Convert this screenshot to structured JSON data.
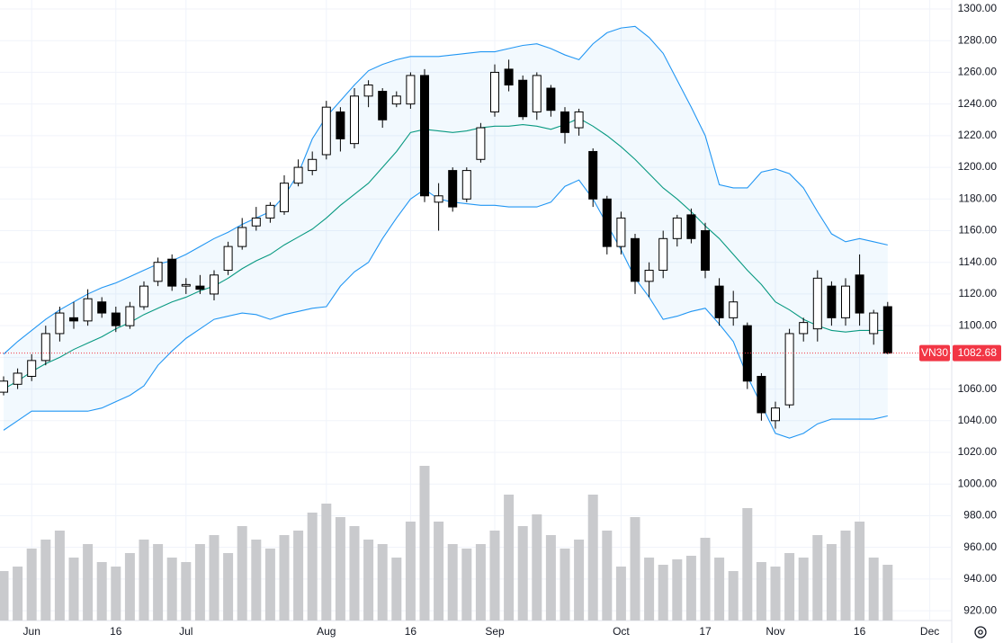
{
  "chart_data": {
    "type": "candlestick",
    "symbol": "VN30",
    "categories": [
      null,
      null,
      "Jun",
      null,
      null,
      null,
      null,
      null,
      "16",
      null,
      null,
      null,
      null,
      "Jul",
      null,
      null,
      null,
      null,
      null,
      null,
      null,
      null,
      null,
      "Aug",
      null,
      null,
      null,
      null,
      null,
      "16",
      null,
      null,
      null,
      null,
      null,
      "Sep",
      null,
      null,
      null,
      null,
      null,
      null,
      null,
      null,
      "Oct",
      null,
      null,
      null,
      null,
      null,
      "17",
      null,
      null,
      null,
      null,
      "Nov",
      null,
      null,
      null,
      null,
      null,
      "16",
      null,
      null,
      null,
      null,
      "Dec",
      null
    ],
    "open": [
      1058,
      1063,
      1068,
      1078,
      1095,
      1105,
      1103,
      1115,
      1108,
      1100,
      1112,
      1128,
      1142,
      1125,
      1125,
      1120,
      1135,
      1150,
      1163,
      1168,
      1172,
      1190,
      1198,
      1208,
      1235,
      1215,
      1245,
      1248,
      1240,
      1240,
      1258,
      1178,
      1198,
      1180,
      1205,
      1235,
      1262,
      1255,
      1235,
      1250,
      1235,
      1225,
      1210,
      1180,
      1150,
      1155,
      1128,
      1135,
      1155,
      1170,
      1160,
      1125,
      1105,
      1100,
      1068,
      1040,
      1050,
      1095,
      1098,
      1125,
      1105,
      1132,
      1095,
      1112,
      null,
      null,
      null,
      null
    ],
    "high": [
      1068,
      1073,
      1082,
      1100,
      1112,
      1115,
      1123,
      1118,
      1112,
      1115,
      1128,
      1143,
      1145,
      1130,
      1132,
      1135,
      1153,
      1168,
      1175,
      1178,
      1195,
      1205,
      1210,
      1242,
      1238,
      1250,
      1255,
      1250,
      1248,
      1260,
      1262,
      1190,
      1200,
      1200,
      1228,
      1265,
      1268,
      1258,
      1260,
      1252,
      1238,
      1237,
      1212,
      1182,
      1172,
      1158,
      1140,
      1160,
      1170,
      1174,
      1165,
      1130,
      1122,
      1102,
      1070,
      1052,
      1098,
      1105,
      1135,
      1128,
      1130,
      1145,
      1110,
      1115,
      null,
      null,
      null,
      null
    ],
    "low": [
      1056,
      1060,
      1065,
      1075,
      1090,
      1098,
      1100,
      1105,
      1096,
      1098,
      1110,
      1125,
      1122,
      1120,
      1120,
      1116,
      1132,
      1148,
      1160,
      1165,
      1170,
      1188,
      1195,
      1205,
      1210,
      1212,
      1238,
      1225,
      1238,
      1237,
      1178,
      1160,
      1172,
      1178,
      1203,
      1232,
      1248,
      1230,
      1230,
      1232,
      1215,
      1220,
      1175,
      1145,
      1145,
      1120,
      1118,
      1130,
      1150,
      1152,
      1130,
      1100,
      1100,
      1060,
      1040,
      1035,
      1048,
      1090,
      1090,
      1100,
      1100,
      1100,
      1088,
      1082,
      null,
      null,
      null,
      null
    ],
    "close": [
      1065,
      1070,
      1078,
      1095,
      1108,
      1103,
      1117,
      1108,
      1100,
      1112,
      1125,
      1140,
      1125,
      1126,
      1123,
      1132,
      1150,
      1162,
      1168,
      1176,
      1190,
      1200,
      1205,
      1238,
      1218,
      1245,
      1252,
      1230,
      1245,
      1258,
      1182,
      1182,
      1175,
      1198,
      1225,
      1260,
      1252,
      1232,
      1258,
      1236,
      1222,
      1235,
      1180,
      1150,
      1168,
      1128,
      1135,
      1155,
      1168,
      1155,
      1135,
      1105,
      1115,
      1065,
      1045,
      1048,
      1095,
      1102,
      1130,
      1105,
      1125,
      1108,
      1108,
      1082.68,
      null,
      null,
      null,
      null
    ],
    "upper_band": [
      1082,
      1090,
      1097,
      1104,
      1110,
      1115,
      1120,
      1124,
      1127,
      1131,
      1135,
      1139,
      1141,
      1145,
      1150,
      1155,
      1159,
      1164,
      1168,
      1172,
      1182,
      1196,
      1218,
      1232,
      1242,
      1252,
      1261,
      1265,
      1268,
      1270,
      1270,
      1270,
      1271,
      1272,
      1273,
      1273,
      1275,
      1277,
      1278,
      1275,
      1271,
      1268,
      1278,
      1285,
      1288,
      1289,
      1282,
      1272,
      1255,
      1238,
      1220,
      1189,
      1187,
      1187,
      1197,
      1199,
      1196,
      1187,
      1172,
      1158,
      1153,
      1155,
      1153,
      1151,
      null,
      null,
      null,
      null
    ],
    "middle_band": [
      1060,
      1065,
      1071,
      1076,
      1080,
      1085,
      1089,
      1093,
      1098,
      1102,
      1107,
      1111,
      1115,
      1118,
      1122,
      1125,
      1130,
      1136,
      1141,
      1145,
      1151,
      1156,
      1161,
      1168,
      1176,
      1183,
      1190,
      1200,
      1210,
      1222,
      1224,
      1223,
      1222,
      1223,
      1225,
      1226,
      1226,
      1227,
      1226,
      1224,
      1227,
      1231,
      1226,
      1220,
      1213,
      1205,
      1196,
      1187,
      1180,
      1172,
      1163,
      1155,
      1145,
      1135,
      1126,
      1115,
      1110,
      1104,
      1100,
      1097,
      1096,
      1097,
      1097,
      1097,
      null,
      null,
      null,
      null
    ],
    "lower_band": [
      1034,
      1040,
      1046,
      1046,
      1046,
      1046,
      1046,
      1048,
      1052,
      1056,
      1062,
      1075,
      1084,
      1092,
      1098,
      1104,
      1106,
      1108,
      1107,
      1104,
      1107,
      1109,
      1111,
      1112,
      1125,
      1134,
      1140,
      1155,
      1168,
      1180,
      1186,
      1180,
      1178,
      1177,
      1176,
      1176,
      1175,
      1175,
      1175,
      1178,
      1188,
      1192,
      1180,
      1164,
      1148,
      1130,
      1118,
      1104,
      1106,
      1109,
      1111,
      1101,
      1090,
      1068,
      1050,
      1032,
      1029,
      1032,
      1038,
      1041,
      1041,
      1041,
      1041,
      1043,
      null,
      null,
      null,
      null
    ],
    "volume": [
      55,
      60,
      80,
      90,
      100,
      70,
      85,
      65,
      60,
      75,
      90,
      85,
      70,
      65,
      85,
      95,
      75,
      105,
      90,
      80,
      95,
      100,
      120,
      130,
      115,
      105,
      90,
      85,
      70,
      110,
      172,
      110,
      85,
      80,
      85,
      100,
      140,
      105,
      118,
      95,
      80,
      90,
      140,
      100,
      60,
      115,
      70,
      62,
      68,
      72,
      92,
      70,
      55,
      125,
      65,
      60,
      75,
      70,
      95,
      85,
      100,
      110,
      70,
      62,
      null,
      null,
      null,
      null
    ],
    "ylim": [
      913.8,
      1305.68
    ],
    "yticks": [
      {
        "value": 920,
        "label": "920.00"
      },
      {
        "value": 940,
        "label": "940.00"
      },
      {
        "value": 960,
        "label": "960.00"
      },
      {
        "value": 980,
        "label": "980.00"
      },
      {
        "value": 1000,
        "label": "1000.00"
      },
      {
        "value": 1020,
        "label": "1020.00"
      },
      {
        "value": 1040,
        "label": "1040.00"
      },
      {
        "value": 1060,
        "label": "1060.00"
      },
      {
        "value": 1080,
        "label": "1080.00"
      },
      {
        "value": 1100,
        "label": "1100.00"
      },
      {
        "value": 1120,
        "label": "1120.00"
      },
      {
        "value": 1140,
        "label": "1140.00"
      },
      {
        "value": 1160,
        "label": "1160.00"
      },
      {
        "value": 1180,
        "label": "1180.00"
      },
      {
        "value": 1200,
        "label": "1200.00"
      },
      {
        "value": 1220,
        "label": "1220.00"
      },
      {
        "value": 1240,
        "label": "1240.00"
      },
      {
        "value": 1260,
        "label": "1260.00"
      },
      {
        "value": 1280,
        "label": "1280.00"
      },
      {
        "value": 1300,
        "label": "1300.00"
      }
    ],
    "volume_lim": [
      0,
      180
    ],
    "grid": true,
    "up_color": "#ffffff",
    "down_color": "#000000",
    "band_color": "#2196f3",
    "middle_color": "#089981",
    "volume_color": "#c9cacd",
    "last_price_color": "#f23645"
  }
}
